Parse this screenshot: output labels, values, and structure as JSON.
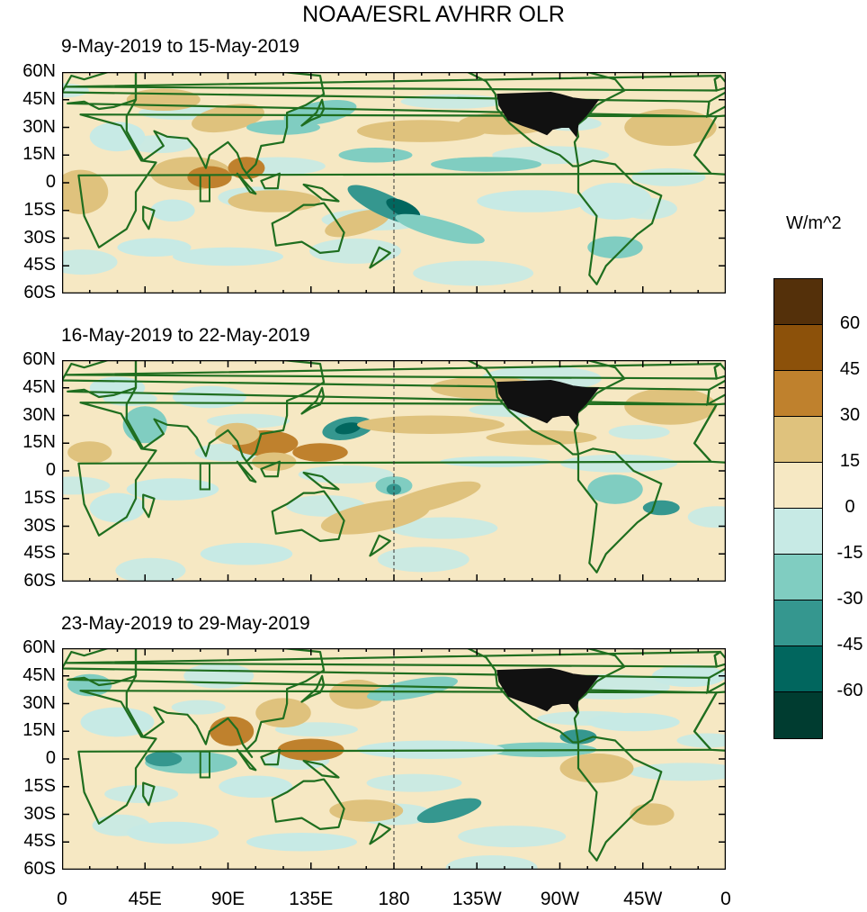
{
  "title": "NOAA/ESRL AVHRR OLR",
  "units": "W/m^2",
  "panels": [
    {
      "label": "9-May-2019 to 15-May-2019"
    },
    {
      "label": "16-May-2019 to 22-May-2019"
    },
    {
      "label": "23-May-2019 to 29-May-2019"
    }
  ],
  "lat_ticks": [
    "60N",
    "45N",
    "30N",
    "15N",
    "0",
    "15S",
    "30S",
    "45S",
    "60S"
  ],
  "lon_ticks": [
    "0",
    "45E",
    "90E",
    "135E",
    "180",
    "135W",
    "90W",
    "45W",
    "0"
  ],
  "colorbar": {
    "labels": [
      "60",
      "45",
      "30",
      "15",
      "0",
      "-15",
      "-30",
      "-45",
      "-60"
    ],
    "colors": [
      "#54300a",
      "#8c510a",
      "#bf812d",
      "#dfc27d",
      "#f6e8c3",
      "#c7eae5",
      "#80cdc1",
      "#35978f",
      "#01665e",
      "#003c30"
    ]
  },
  "colors": {
    "coast": "#1f6e1f",
    "us_fill": "#111111"
  }
}
